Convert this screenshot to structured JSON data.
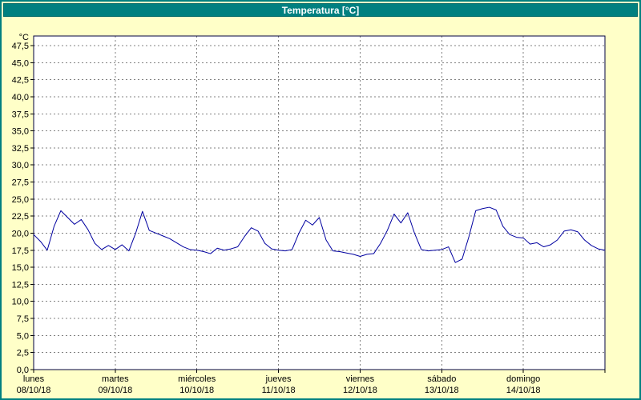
{
  "window": {
    "title": "Temperatura [°C]"
  },
  "colors": {
    "background": "#FFFFC8",
    "titlebar_bg": "#008080",
    "titlebar_text": "#FFFFFF",
    "plot_bg": "#FFFFFF",
    "grid": "#808080",
    "frame": "#000040",
    "line": "#0000A0",
    "text": "#000000"
  },
  "chart_data": {
    "type": "line",
    "title": "Temperatura [°C]",
    "ylabel": "°C",
    "ylim": [
      0,
      48.9
    ],
    "y_tick_step": 2.5,
    "y_tick_max": 47.5,
    "y_tick_labels": [
      "0,0",
      "2,5",
      "5,0",
      "7,5",
      "10,0",
      "12,5",
      "15,0",
      "17,5",
      "20,0",
      "22,5",
      "25,0",
      "27,5",
      "30,0",
      "32,5",
      "35,0",
      "37,5",
      "40,0",
      "42,5",
      "45,0",
      "47,5"
    ],
    "decimal_separator": ",",
    "grid": true,
    "legend": false,
    "days": [
      {
        "name": "lunes",
        "date": "08/10/18"
      },
      {
        "name": "martes",
        "date": "09/10/18"
      },
      {
        "name": "miércoles",
        "date": "10/10/18"
      },
      {
        "name": "jueves",
        "date": "11/10/18"
      },
      {
        "name": "viernes",
        "date": "12/10/18"
      },
      {
        "name": "sábado",
        "date": "13/10/18"
      },
      {
        "name": "domingo",
        "date": "14/10/18"
      }
    ],
    "sample_interval_hours": 2,
    "series": [
      {
        "name": "Temperatura",
        "color": "#0000A0",
        "values": [
          19.8,
          18.8,
          17.5,
          21.0,
          23.3,
          22.3,
          21.3,
          22.0,
          20.5,
          18.5,
          17.6,
          18.2,
          17.6,
          18.3,
          17.4,
          20.0,
          23.2,
          20.4,
          20.0,
          19.6,
          19.2,
          18.6,
          18.0,
          17.6,
          17.5,
          17.3,
          17.0,
          17.8,
          17.5,
          17.7,
          18.0,
          19.5,
          20.8,
          20.3,
          18.5,
          17.7,
          17.5,
          17.4,
          17.6,
          20.0,
          21.9,
          21.2,
          22.3,
          19.0,
          17.4,
          17.3,
          17.1,
          16.9,
          16.6,
          16.9,
          17.0,
          18.5,
          20.4,
          22.8,
          21.5,
          23.0,
          20.0,
          17.6,
          17.4,
          17.5,
          17.6,
          18.0,
          15.7,
          16.2,
          19.5,
          23.3,
          23.6,
          23.8,
          23.4,
          21.0,
          19.8,
          19.4,
          19.3,
          18.4,
          18.6,
          18.0,
          18.3,
          19.0,
          20.3,
          20.5,
          20.2,
          19.0,
          18.2,
          17.7,
          17.5
        ]
      }
    ]
  }
}
